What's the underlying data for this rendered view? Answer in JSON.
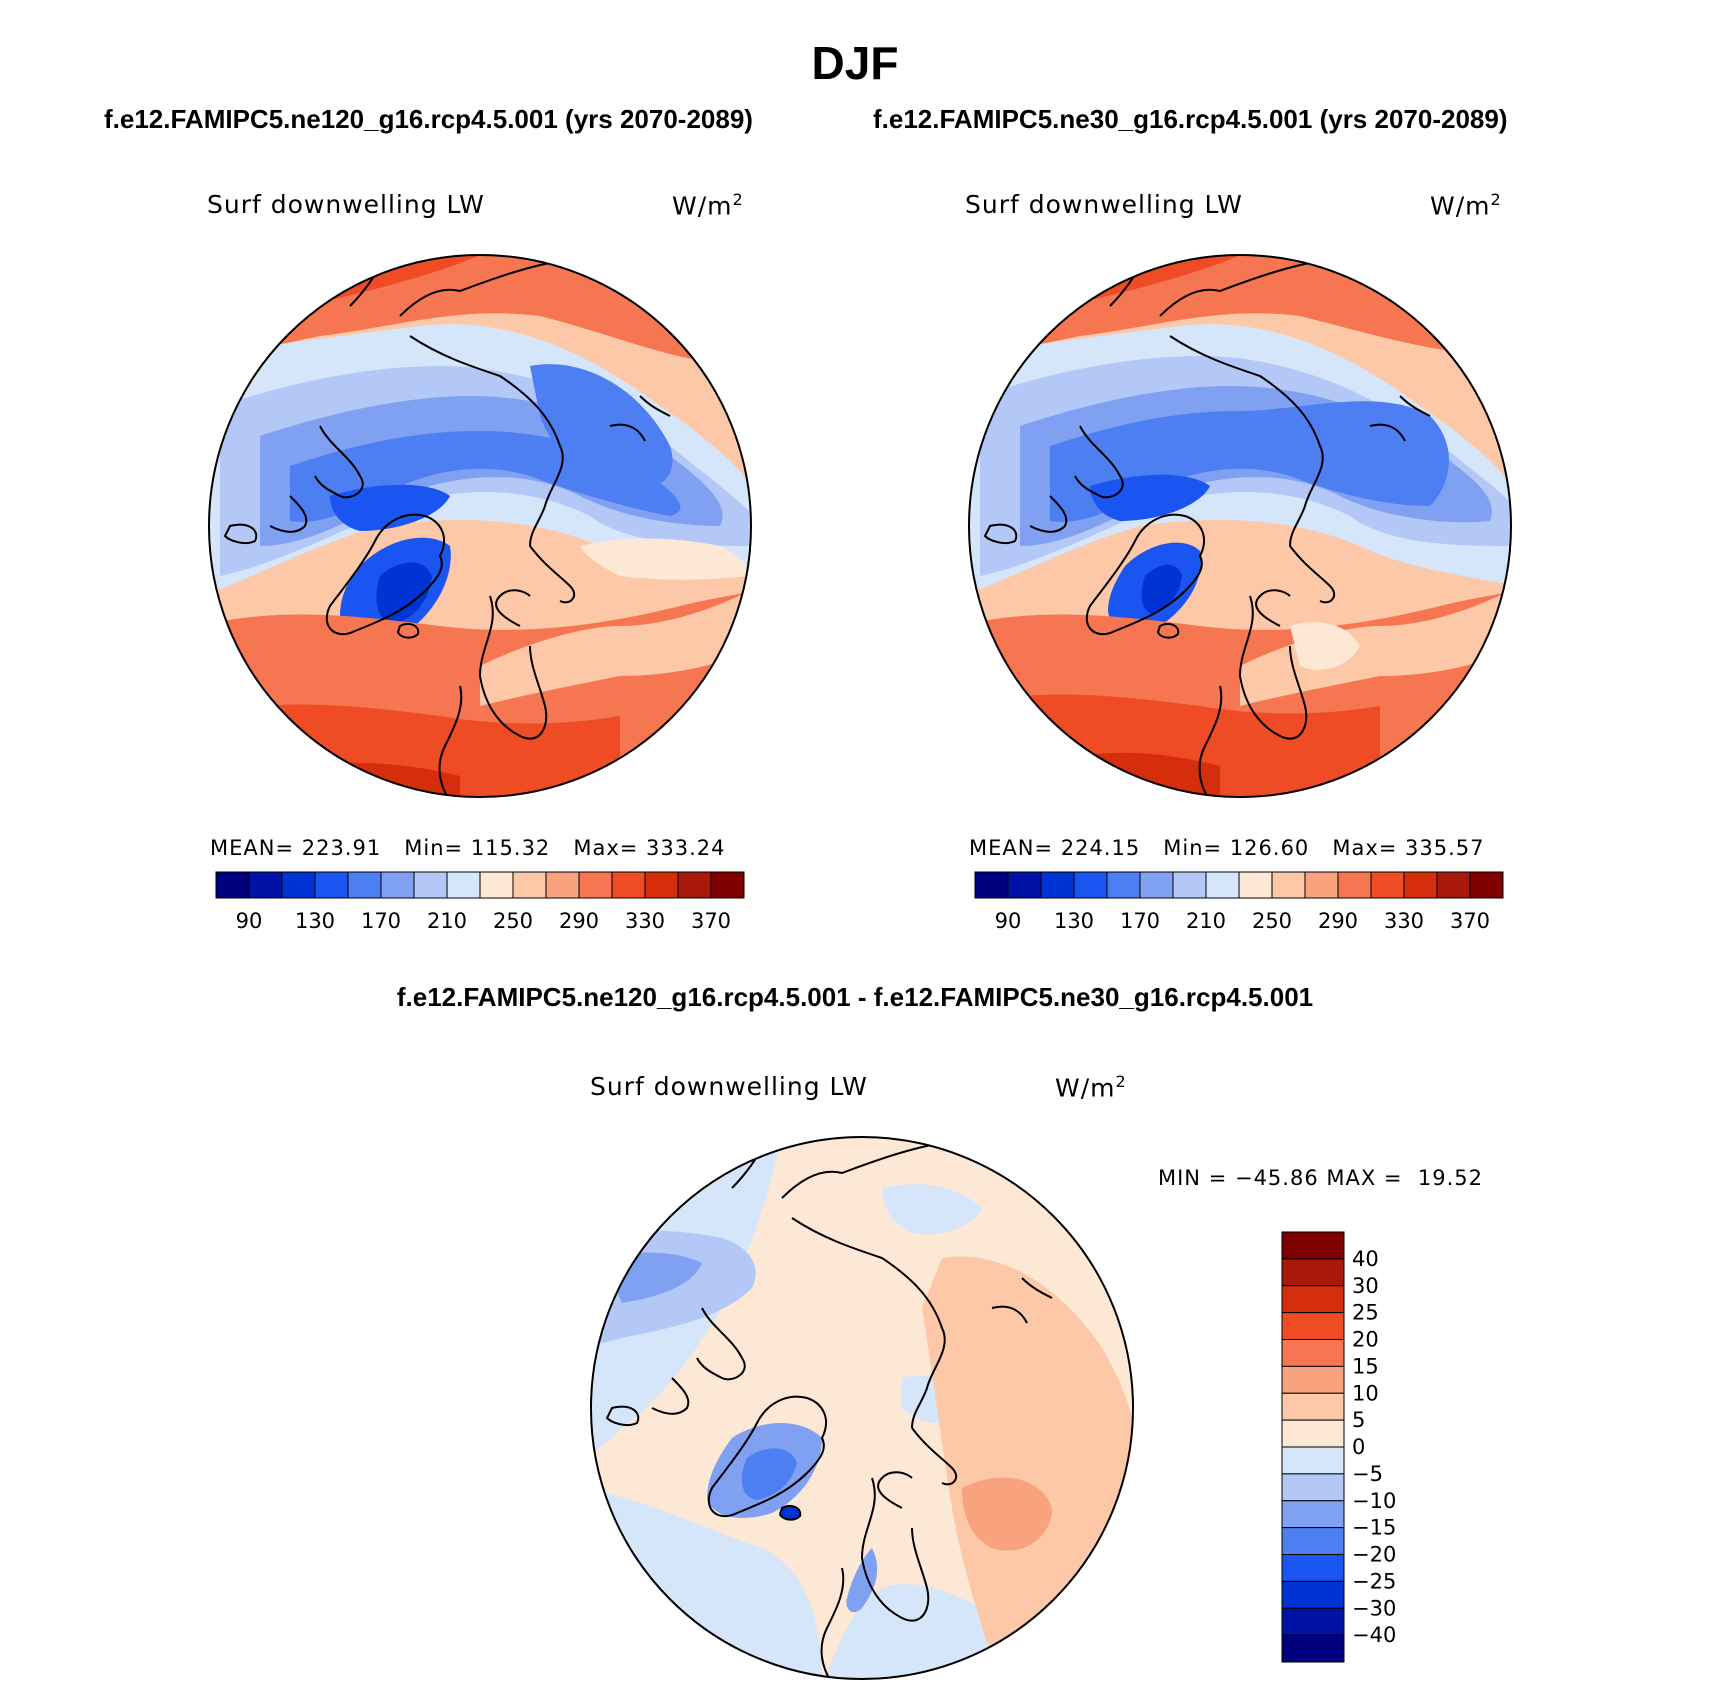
{
  "figure": {
    "title": "DJF",
    "subtitle_left": "f.e12.FAMIPC5.ne120_g16.rcp4.5.001 (yrs 2070-2089)",
    "subtitle_right": "f.e12.FAMIPC5.ne30_g16.rcp4.5.001 (yrs 2070-2089)",
    "subtitle_diff": "f.e12.FAMIPC5.ne120_g16.rcp4.5.001 - f.e12.FAMIPC5.ne30_g16.rcp4.5.001"
  },
  "panels": {
    "left": {
      "title": "Surf downwelling LW",
      "units_base": "W/m",
      "units_exp": "2",
      "mean_label": "MEAN=",
      "mean": "223.91",
      "min_label": "Min=",
      "min": "115.32",
      "max_label": "Max=",
      "max": "333.24"
    },
    "right": {
      "title": "Surf downwelling LW",
      "units_base": "W/m",
      "units_exp": "2",
      "mean_label": "MEAN=",
      "mean": "224.15",
      "min_label": "Min=",
      "min": "126.60",
      "max_label": "Max=",
      "max": "335.57"
    },
    "diff": {
      "title": "Surf downwelling LW",
      "units_base": "W/m",
      "units_exp": "2",
      "minmax_text": "MIN = −45.86 MAX =  19.52"
    }
  },
  "chart_data": [
    {
      "type": "heatmap",
      "title": "Surf downwelling LW",
      "projection": "north polar stereographic",
      "units": "W/m2",
      "mean": 223.91,
      "min": 115.32,
      "max": 333.24,
      "colorbar": {
        "orientation": "horizontal",
        "levels": [
          80,
          90,
          110,
          130,
          150,
          170,
          190,
          210,
          230,
          250,
          270,
          290,
          310,
          330,
          350,
          370
        ],
        "tick_labels": [
          "90",
          "130",
          "170",
          "210",
          "250",
          "290",
          "330",
          "370"
        ],
        "colors": [
          "#00007f",
          "#0012a6",
          "#0033d4",
          "#1a55f2",
          "#4d7ef2",
          "#80a0f2",
          "#b3c8f7",
          "#d6e6fa",
          "#fde8d6",
          "#fcc8a8",
          "#f9a27e",
          "#f57650",
          "#ef4b25",
          "#d42e0d",
          "#a8190a",
          "#7f0000"
        ]
      }
    },
    {
      "type": "heatmap",
      "title": "Surf downwelling LW",
      "projection": "north polar stereographic",
      "units": "W/m2",
      "mean": 224.15,
      "min": 126.6,
      "max": 335.57,
      "colorbar": {
        "orientation": "horizontal",
        "levels": [
          80,
          90,
          110,
          130,
          150,
          170,
          190,
          210,
          230,
          250,
          270,
          290,
          310,
          330,
          350,
          370
        ],
        "tick_labels": [
          "90",
          "130",
          "170",
          "210",
          "250",
          "290",
          "330",
          "370"
        ],
        "colors": [
          "#00007f",
          "#0012a6",
          "#0033d4",
          "#1a55f2",
          "#4d7ef2",
          "#80a0f2",
          "#b3c8f7",
          "#d6e6fa",
          "#fde8d6",
          "#fcc8a8",
          "#f9a27e",
          "#f57650",
          "#ef4b25",
          "#d42e0d",
          "#a8190a",
          "#7f0000"
        ]
      }
    },
    {
      "type": "heatmap",
      "title": "Surf downwelling LW",
      "projection": "north polar stereographic",
      "units": "W/m2",
      "min": -45.86,
      "max": 19.52,
      "colorbar": {
        "orientation": "vertical",
        "tick_labels": [
          "40",
          "30",
          "25",
          "20",
          "15",
          "10",
          "5",
          "0",
          "−5",
          "−10",
          "−15",
          "−20",
          "−25",
          "−30",
          "−40"
        ],
        "colors_top_to_bottom": [
          "#7f0000",
          "#a8190a",
          "#d42e0d",
          "#ef4b25",
          "#f57650",
          "#f9a27e",
          "#fcc8a8",
          "#fde8d6",
          "#d6e6fa",
          "#b3c8f7",
          "#80a0f2",
          "#4d7ef2",
          "#1a55f2",
          "#0033d4",
          "#0012a6",
          "#00007f"
        ]
      }
    }
  ]
}
